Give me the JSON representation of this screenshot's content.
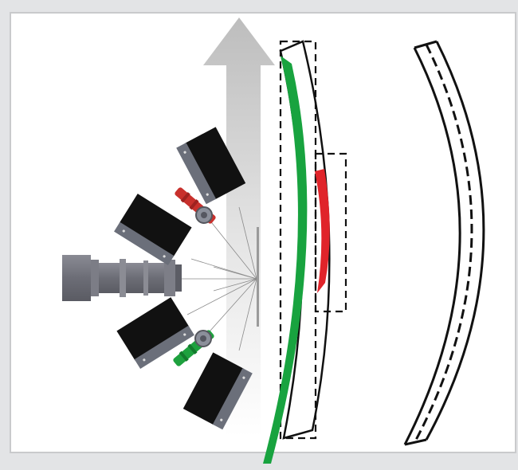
{
  "figure": {
    "background": "#e3e4e6",
    "panel_fill": "#ffffff",
    "panel_border": "#c9cacc",
    "components": {
      "arrow": {
        "icon": "up-arrow",
        "color": "#c4c4c4"
      },
      "main_camera": {
        "icon": "camera-lens",
        "color": "#6f7079"
      },
      "side_cameras": {
        "icon": "camera-body",
        "count": 4,
        "color": "#111111",
        "mount_color": "#6b6f7a"
      },
      "lasers": [
        {
          "icon": "laser",
          "color": "#c8302c"
        },
        {
          "icon": "laser",
          "color": "#1ea13e"
        }
      ],
      "curved_profile": {
        "outline": "#111111",
        "green_band": "#18a33f",
        "red_band": "#e0242a"
      },
      "dashed_profile": {
        "outline": "#111111"
      }
    }
  }
}
